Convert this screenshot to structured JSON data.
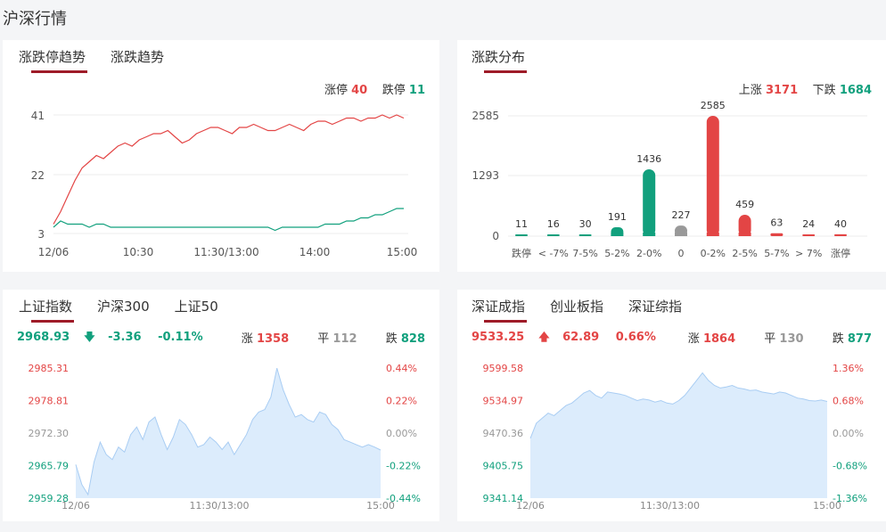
{
  "page_title": "沪深行情",
  "limit_panel": {
    "tabs": [
      "涨跌停趋势",
      "涨跌趋势"
    ],
    "up_label": "涨停",
    "up_value": "40",
    "down_label": "跌停",
    "down_value": "11",
    "y_ticks": [
      "41",
      "22",
      "3"
    ],
    "x_ticks": [
      "12/06",
      "10:30",
      "11:30/13:00",
      "14:00",
      "15:00"
    ]
  },
  "dist_panel": {
    "tab": "涨跌分布",
    "up_label": "上涨",
    "up_value": "3171",
    "down_label": "下跌",
    "down_value": "1684",
    "y_ticks": [
      "2585",
      "1293",
      "0"
    ]
  },
  "sh_panel": {
    "tabs": [
      "上证指数",
      "沪深300",
      "上证50"
    ],
    "price": "2968.93",
    "change": "-3.36",
    "pct": "-0.11%",
    "up_label": "涨",
    "up_value": "1358",
    "flat_label": "平",
    "flat_value": "112",
    "down_label": "跌",
    "down_value": "828",
    "left_ticks": [
      "2985.31",
      "2978.81",
      "2972.30",
      "2965.79",
      "2959.28"
    ],
    "right_ticks": [
      "0.44%",
      "0.22%",
      "0.00%",
      "-0.22%",
      "-0.44%"
    ],
    "x_ticks": [
      "12/06",
      "11:30/13:00",
      "15:00"
    ]
  },
  "sz_panel": {
    "tabs": [
      "深证成指",
      "创业板指",
      "深证综指"
    ],
    "price": "9533.25",
    "change": "62.89",
    "pct": "0.66%",
    "up_label": "涨",
    "up_value": "1864",
    "flat_label": "平",
    "flat_value": "130",
    "down_label": "跌",
    "down_value": "877",
    "left_ticks": [
      "9599.58",
      "9534.97",
      "9470.36",
      "9405.75",
      "9341.14"
    ],
    "right_ticks": [
      "1.36%",
      "0.68%",
      "0.00%",
      "-0.68%",
      "-1.36%"
    ],
    "x_ticks": [
      "12/06",
      "11:30/13:00",
      "15:00"
    ]
  },
  "colors": {
    "up": "#e34545",
    "down": "#11a07d",
    "flat": "#999999",
    "area": "#dcecfc",
    "area_line": "#a9cdf3",
    "accent": "#9e1b28"
  },
  "chart_data": [
    {
      "type": "line",
      "x_ticks": [
        "12/06",
        "10:30",
        "11:30/13:00",
        "14:00",
        "15:00"
      ],
      "ylim": [
        3,
        41
      ],
      "series": [
        {
          "name": "涨停",
          "values": [
            6,
            10,
            15,
            20,
            24,
            26,
            28,
            27,
            29,
            31,
            32,
            31,
            33,
            34,
            35,
            35,
            36,
            34,
            32,
            33,
            35,
            36,
            37,
            37,
            36,
            35,
            37,
            37,
            38,
            37,
            36,
            36,
            37,
            38,
            37,
            36,
            38,
            39,
            39,
            38,
            39,
            40,
            40,
            39,
            40,
            40,
            41,
            40,
            41,
            40
          ]
        },
        {
          "name": "跌停",
          "values": [
            5,
            7,
            6,
            6,
            6,
            5,
            6,
            6,
            5,
            5,
            5,
            5,
            5,
            5,
            5,
            5,
            5,
            5,
            5,
            5,
            5,
            5,
            5,
            5,
            5,
            5,
            5,
            5,
            5,
            5,
            5,
            4,
            5,
            5,
            5,
            5,
            5,
            5,
            6,
            6,
            6,
            7,
            7,
            8,
            8,
            9,
            9,
            10,
            11,
            11
          ]
        }
      ]
    },
    {
      "type": "bar",
      "categories": [
        "跌停",
        "< -7%",
        "7-5%",
        "5-2%",
        "2-0%",
        "0",
        "0-2%",
        "2-5%",
        "5-7%",
        "> 7%",
        "涨停"
      ],
      "values": [
        11,
        16,
        30,
        191,
        1436,
        227,
        2585,
        459,
        63,
        24,
        40
      ],
      "ylim": [
        0,
        2585
      ]
    },
    {
      "type": "area",
      "name": "上证指数",
      "x_ticks": [
        "12/06",
        "11:30/13:00",
        "15:00"
      ],
      "ylim": [
        2959.28,
        2985.31
      ],
      "values": [
        2966.0,
        2962.0,
        2960.0,
        2966.5,
        2970.5,
        2968.0,
        2967.0,
        2969.5,
        2968.5,
        2972.0,
        2973.5,
        2971.0,
        2974.5,
        2975.5,
        2972.0,
        2969.0,
        2971.5,
        2975.0,
        2974.0,
        2972.0,
        2969.5,
        2970.0,
        2971.5,
        2970.5,
        2969.0,
        2970.5,
        2968.0,
        2970.0,
        2972.0,
        2975.0,
        2976.5,
        2977.0,
        2979.5,
        2985.3,
        2981.0,
        2978.0,
        2975.5,
        2976.0,
        2975.0,
        2974.5,
        2976.5,
        2976.0,
        2974.0,
        2973.0,
        2971.0,
        2970.5,
        2970.0,
        2969.5,
        2970.0,
        2969.5,
        2968.9
      ]
    },
    {
      "type": "area",
      "name": "深证成指",
      "x_ticks": [
        "12/06",
        "11:30/13:00",
        "15:00"
      ],
      "ylim": [
        9341.14,
        9599.58
      ],
      "values": [
        9460,
        9490,
        9500,
        9510,
        9505,
        9515,
        9525,
        9530,
        9540,
        9550,
        9555,
        9545,
        9540,
        9552,
        9550,
        9548,
        9545,
        9540,
        9535,
        9538,
        9536,
        9532,
        9535,
        9530,
        9528,
        9535,
        9545,
        9560,
        9575,
        9590,
        9575,
        9565,
        9560,
        9562,
        9565,
        9560,
        9558,
        9555,
        9556,
        9552,
        9550,
        9548,
        9552,
        9550,
        9545,
        9540,
        9538,
        9535,
        9534,
        9536,
        9533.25
      ]
    }
  ]
}
